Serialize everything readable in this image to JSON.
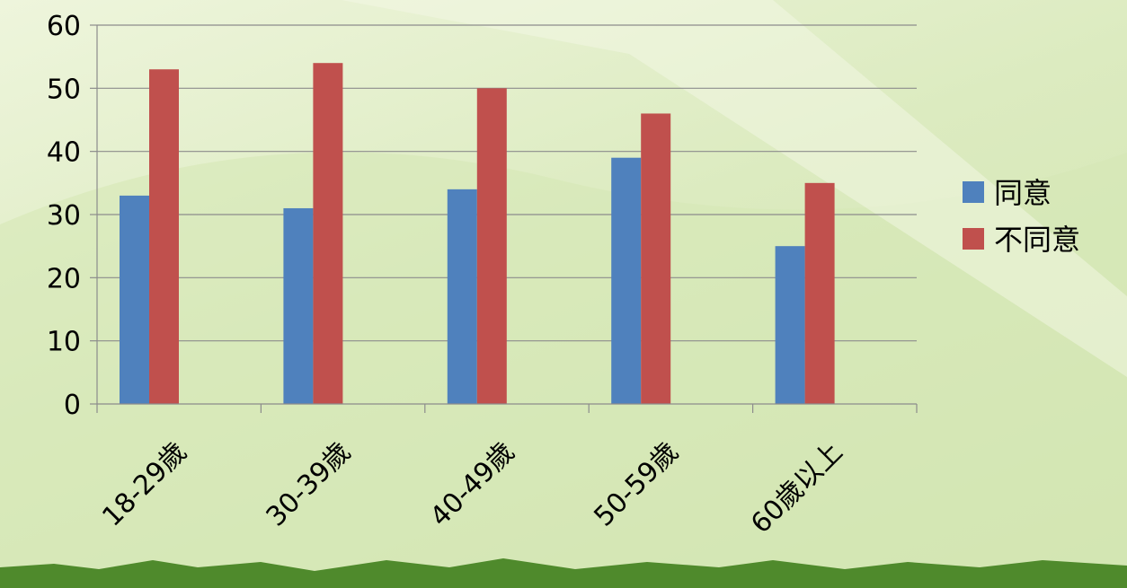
{
  "chart_data": {
    "type": "bar",
    "title": "",
    "xlabel": "",
    "ylabel": "",
    "categories": [
      "18-29歲",
      "30-39歲",
      "40-49歲",
      "50-59歲",
      "60歲以上"
    ],
    "series": [
      {
        "name": "同意",
        "color": "#4f81bd",
        "values": [
          33,
          31,
          34,
          39,
          25
        ]
      },
      {
        "name": "不同意",
        "color": "#c0504d",
        "values": [
          53,
          54,
          50,
          46,
          35
        ]
      }
    ],
    "ylim": [
      0,
      60
    ],
    "yticks": [
      0,
      10,
      20,
      30,
      40,
      50,
      60
    ],
    "grid": true,
    "legend": "right"
  }
}
